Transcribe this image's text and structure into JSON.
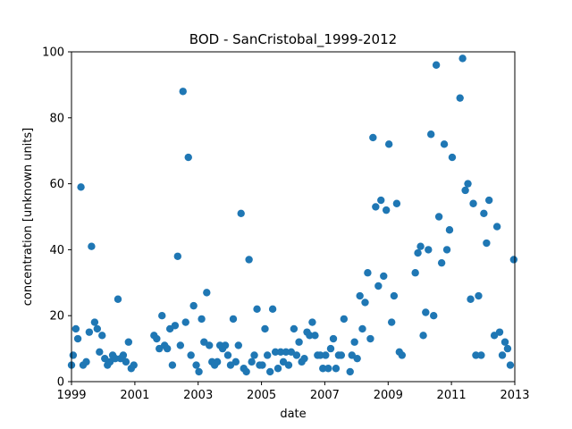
{
  "chart_data": {
    "type": "scatter",
    "title": "BOD - SanCristobal_1999-2012",
    "xlabel": "date",
    "ylabel": "concentration [unknown units]",
    "xlim": [
      "1999-01-01",
      "2013-01-01"
    ],
    "ylim": [
      0,
      100
    ],
    "xticks": [
      "1999",
      "2001",
      "2003",
      "2005",
      "2007",
      "2009",
      "2011",
      "2013"
    ],
    "yticks": [
      0,
      20,
      40,
      60,
      80,
      100
    ],
    "grid": false,
    "legend": "none",
    "marker_color": "#1f77b4",
    "points": [
      {
        "x": "1999-01-01",
        "y": 5
      },
      {
        "x": "1999-01-20",
        "y": 8
      },
      {
        "x": "1999-02-20",
        "y": 16
      },
      {
        "x": "1999-03-15",
        "y": 13
      },
      {
        "x": "1999-04-20",
        "y": 59
      },
      {
        "x": "1999-05-15",
        "y": 5
      },
      {
        "x": "1999-06-20",
        "y": 6
      },
      {
        "x": "1999-07-25",
        "y": 15
      },
      {
        "x": "1999-08-20",
        "y": 41
      },
      {
        "x": "1999-09-25",
        "y": 18
      },
      {
        "x": "1999-10-25",
        "y": 16
      },
      {
        "x": "1999-11-20",
        "y": 9
      },
      {
        "x": "1999-12-20",
        "y": 14
      },
      {
        "x": "2000-01-20",
        "y": 7
      },
      {
        "x": "2000-02-20",
        "y": 5
      },
      {
        "x": "2000-03-20",
        "y": 6
      },
      {
        "x": "2000-04-20",
        "y": 8
      },
      {
        "x": "2000-05-20",
        "y": 7
      },
      {
        "x": "2000-06-20",
        "y": 25
      },
      {
        "x": "2000-07-20",
        "y": 7
      },
      {
        "x": "2000-08-20",
        "y": 8
      },
      {
        "x": "2000-09-20",
        "y": 6
      },
      {
        "x": "2000-10-20",
        "y": 12
      },
      {
        "x": "2000-11-20",
        "y": 4
      },
      {
        "x": "2000-12-20",
        "y": 5
      },
      {
        "x": "2001-08-10",
        "y": 14
      },
      {
        "x": "2001-09-10",
        "y": 13
      },
      {
        "x": "2001-10-10",
        "y": 10
      },
      {
        "x": "2001-11-10",
        "y": 20
      },
      {
        "x": "2001-12-10",
        "y": 11
      },
      {
        "x": "2002-01-10",
        "y": 10
      },
      {
        "x": "2002-02-10",
        "y": 16
      },
      {
        "x": "2002-03-10",
        "y": 5
      },
      {
        "x": "2002-04-10",
        "y": 17
      },
      {
        "x": "2002-05-10",
        "y": 38
      },
      {
        "x": "2002-06-10",
        "y": 11
      },
      {
        "x": "2002-07-10",
        "y": 88
      },
      {
        "x": "2002-08-10",
        "y": 18
      },
      {
        "x": "2002-09-10",
        "y": 68
      },
      {
        "x": "2002-10-10",
        "y": 8
      },
      {
        "x": "2002-11-10",
        "y": 23
      },
      {
        "x": "2002-12-10",
        "y": 5
      },
      {
        "x": "2003-01-10",
        "y": 3
      },
      {
        "x": "2003-02-10",
        "y": 19
      },
      {
        "x": "2003-03-10",
        "y": 12
      },
      {
        "x": "2003-04-10",
        "y": 27
      },
      {
        "x": "2003-05-10",
        "y": 11
      },
      {
        "x": "2003-06-10",
        "y": 6
      },
      {
        "x": "2003-07-10",
        "y": 5
      },
      {
        "x": "2003-08-10",
        "y": 6
      },
      {
        "x": "2003-09-10",
        "y": 11
      },
      {
        "x": "2003-10-10",
        "y": 10
      },
      {
        "x": "2003-11-10",
        "y": 11
      },
      {
        "x": "2003-12-10",
        "y": 8
      },
      {
        "x": "2004-01-10",
        "y": 5
      },
      {
        "x": "2004-02-10",
        "y": 19
      },
      {
        "x": "2004-03-10",
        "y": 6
      },
      {
        "x": "2004-04-10",
        "y": 11
      },
      {
        "x": "2004-05-10",
        "y": 51
      },
      {
        "x": "2004-06-10",
        "y": 4
      },
      {
        "x": "2004-07-10",
        "y": 3
      },
      {
        "x": "2004-08-10",
        "y": 37
      },
      {
        "x": "2004-09-10",
        "y": 6
      },
      {
        "x": "2004-10-10",
        "y": 8
      },
      {
        "x": "2004-11-10",
        "y": 22
      },
      {
        "x": "2004-12-10",
        "y": 5
      },
      {
        "x": "2005-01-10",
        "y": 5
      },
      {
        "x": "2005-02-10",
        "y": 16
      },
      {
        "x": "2005-03-10",
        "y": 8
      },
      {
        "x": "2005-04-10",
        "y": 3
      },
      {
        "x": "2005-05-10",
        "y": 22
      },
      {
        "x": "2005-06-10",
        "y": 9
      },
      {
        "x": "2005-07-10",
        "y": 4
      },
      {
        "x": "2005-08-10",
        "y": 9
      },
      {
        "x": "2005-09-10",
        "y": 6
      },
      {
        "x": "2005-10-10",
        "y": 9
      },
      {
        "x": "2005-11-10",
        "y": 5
      },
      {
        "x": "2005-12-10",
        "y": 9
      },
      {
        "x": "2006-01-10",
        "y": 16
      },
      {
        "x": "2006-02-10",
        "y": 8
      },
      {
        "x": "2006-03-10",
        "y": 12
      },
      {
        "x": "2006-04-10",
        "y": 6
      },
      {
        "x": "2006-05-10",
        "y": 7
      },
      {
        "x": "2006-06-10",
        "y": 15
      },
      {
        "x": "2006-07-10",
        "y": 14
      },
      {
        "x": "2006-08-10",
        "y": 18
      },
      {
        "x": "2006-09-10",
        "y": 14
      },
      {
        "x": "2006-10-10",
        "y": 8
      },
      {
        "x": "2006-11-10",
        "y": 8
      },
      {
        "x": "2006-12-10",
        "y": 4
      },
      {
        "x": "2007-01-10",
        "y": 8
      },
      {
        "x": "2007-02-10",
        "y": 4
      },
      {
        "x": "2007-03-10",
        "y": 10
      },
      {
        "x": "2007-04-10",
        "y": 13
      },
      {
        "x": "2007-05-10",
        "y": 4
      },
      {
        "x": "2007-06-10",
        "y": 8
      },
      {
        "x": "2007-07-10",
        "y": 8
      },
      {
        "x": "2007-08-10",
        "y": 19
      },
      {
        "x": "2007-10-20",
        "y": 3
      },
      {
        "x": "2007-11-10",
        "y": 8
      },
      {
        "x": "2007-12-10",
        "y": 12
      },
      {
        "x": "2008-01-10",
        "y": 7
      },
      {
        "x": "2008-02-10",
        "y": 26
      },
      {
        "x": "2008-03-10",
        "y": 16
      },
      {
        "x": "2008-04-10",
        "y": 24
      },
      {
        "x": "2008-05-10",
        "y": 33
      },
      {
        "x": "2008-06-10",
        "y": 13
      },
      {
        "x": "2008-07-10",
        "y": 74
      },
      {
        "x": "2008-08-10",
        "y": 53
      },
      {
        "x": "2008-09-10",
        "y": 29
      },
      {
        "x": "2008-10-10",
        "y": 55
      },
      {
        "x": "2008-11-10",
        "y": 32
      },
      {
        "x": "2008-12-10",
        "y": 52
      },
      {
        "x": "2009-01-10",
        "y": 72
      },
      {
        "x": "2009-02-10",
        "y": 18
      },
      {
        "x": "2009-03-10",
        "y": 26
      },
      {
        "x": "2009-04-10",
        "y": 54
      },
      {
        "x": "2009-05-10",
        "y": 9
      },
      {
        "x": "2009-06-10",
        "y": 8
      },
      {
        "x": "2009-11-10",
        "y": 33
      },
      {
        "x": "2009-12-10",
        "y": 39
      },
      {
        "x": "2010-01-10",
        "y": 41
      },
      {
        "x": "2010-02-10",
        "y": 14
      },
      {
        "x": "2010-03-10",
        "y": 21
      },
      {
        "x": "2010-04-10",
        "y": 40
      },
      {
        "x": "2010-05-10",
        "y": 75
      },
      {
        "x": "2010-06-10",
        "y": 20
      },
      {
        "x": "2010-07-10",
        "y": 96
      },
      {
        "x": "2010-08-10",
        "y": 50
      },
      {
        "x": "2010-09-10",
        "y": 36
      },
      {
        "x": "2010-10-10",
        "y": 72
      },
      {
        "x": "2010-11-10",
        "y": 40
      },
      {
        "x": "2010-12-10",
        "y": 46
      },
      {
        "x": "2011-01-10",
        "y": 68
      },
      {
        "x": "2011-04-10",
        "y": 86
      },
      {
        "x": "2011-05-10",
        "y": 98
      },
      {
        "x": "2011-06-10",
        "y": 58
      },
      {
        "x": "2011-07-10",
        "y": 60
      },
      {
        "x": "2011-08-10",
        "y": 25
      },
      {
        "x": "2011-09-10",
        "y": 54
      },
      {
        "x": "2011-10-10",
        "y": 8
      },
      {
        "x": "2011-11-10",
        "y": 26
      },
      {
        "x": "2011-12-10",
        "y": 8
      },
      {
        "x": "2012-01-10",
        "y": 51
      },
      {
        "x": "2012-02-10",
        "y": 42
      },
      {
        "x": "2012-03-10",
        "y": 55
      },
      {
        "x": "2012-05-10",
        "y": 14
      },
      {
        "x": "2012-06-10",
        "y": 47
      },
      {
        "x": "2012-07-10",
        "y": 15
      },
      {
        "x": "2012-08-10",
        "y": 8
      },
      {
        "x": "2012-09-10",
        "y": 12
      },
      {
        "x": "2012-10-10",
        "y": 10
      },
      {
        "x": "2012-11-10",
        "y": 5
      },
      {
        "x": "2012-12-20",
        "y": 37
      }
    ]
  }
}
